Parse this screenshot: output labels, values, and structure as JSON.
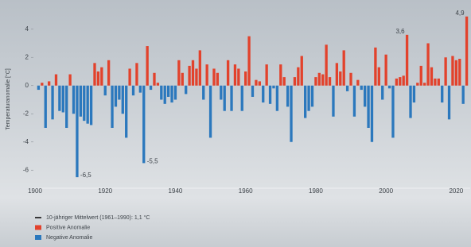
{
  "chart_data": {
    "type": "bar",
    "y_label": "Temperaturanomalie [°C]",
    "x": [
      1901,
      1902,
      1903,
      1904,
      1905,
      1906,
      1907,
      1908,
      1909,
      1910,
      1911,
      1912,
      1913,
      1914,
      1915,
      1916,
      1917,
      1918,
      1919,
      1920,
      1921,
      1922,
      1923,
      1924,
      1925,
      1926,
      1927,
      1928,
      1929,
      1930,
      1931,
      1932,
      1933,
      1934,
      1935,
      1936,
      1937,
      1938,
      1939,
      1940,
      1941,
      1942,
      1943,
      1944,
      1945,
      1946,
      1947,
      1948,
      1949,
      1950,
      1951,
      1952,
      1953,
      1954,
      1955,
      1956,
      1957,
      1958,
      1959,
      1960,
      1961,
      1962,
      1963,
      1964,
      1965,
      1966,
      1967,
      1968,
      1969,
      1970,
      1971,
      1972,
      1973,
      1974,
      1975,
      1976,
      1977,
      1978,
      1979,
      1980,
      1981,
      1982,
      1983,
      1984,
      1985,
      1986,
      1987,
      1988,
      1989,
      1990,
      1991,
      1992,
      1993,
      1994,
      1995,
      1996,
      1997,
      1998,
      1999,
      2000,
      2001,
      2002,
      2003,
      2004,
      2005,
      2006,
      2007,
      2008,
      2009,
      2010,
      2011,
      2012,
      2013,
      2014,
      2015,
      2016,
      2017,
      2018,
      2019,
      2020,
      2021,
      2022,
      2023
    ],
    "values": [
      -0.3,
      0.2,
      -3.0,
      0.3,
      -2.4,
      0.8,
      -1.8,
      -1.9,
      -3.0,
      0.8,
      -2.0,
      -6.5,
      -2.2,
      -2.5,
      -2.7,
      -2.8,
      1.6,
      1.0,
      1.3,
      -0.7,
      1.8,
      -3.0,
      -1.5,
      -1.0,
      -2.0,
      -3.7,
      1.2,
      -0.7,
      1.6,
      -0.5,
      -5.5,
      2.8,
      -0.3,
      0.9,
      0.2,
      -1.0,
      -1.3,
      -0.8,
      -1.2,
      -1.0,
      1.8,
      0.9,
      -0.6,
      1.4,
      1.8,
      1.2,
      2.5,
      -1.0,
      1.5,
      -3.7,
      1.2,
      0.9,
      -1.0,
      -1.8,
      1.8,
      -1.8,
      1.5,
      1.2,
      -1.8,
      1.0,
      3.5,
      -0.8,
      0.4,
      0.3,
      -1.2,
      1.5,
      -1.3,
      -0.2,
      -1.8,
      1.5,
      0.6,
      -1.5,
      -4.0,
      0.6,
      1.3,
      2.1,
      -2.3,
      -1.8,
      -1.5,
      0.6,
      0.9,
      0.8,
      2.9,
      0.6,
      -2.2,
      1.6,
      1.0,
      2.5,
      -0.4,
      0.9,
      -2.2,
      0.4,
      -0.3,
      -1.5,
      -3.0,
      -4.0,
      2.7,
      1.3,
      -1.0,
      2.2,
      -0.2,
      -3.7,
      0.5,
      0.6,
      0.7,
      3.6,
      -2.3,
      -1.2,
      0.2,
      1.4,
      0.2,
      3.0,
      1.3,
      0.5,
      0.5,
      -1.2,
      2.0,
      -2.4,
      2.1,
      1.8,
      1.9,
      -1.3,
      4.9
    ],
    "value_labels": [
      null,
      null,
      null,
      null,
      null,
      null,
      null,
      null,
      null,
      null,
      null,
      "-6,5",
      null,
      null,
      null,
      null,
      null,
      null,
      null,
      null,
      null,
      null,
      null,
      null,
      null,
      null,
      null,
      null,
      null,
      null,
      "-5,5",
      null,
      null,
      null,
      null,
      null,
      null,
      null,
      null,
      null,
      null,
      null,
      null,
      null,
      null,
      null,
      null,
      null,
      null,
      null,
      null,
      null,
      null,
      null,
      null,
      null,
      null,
      null,
      null,
      null,
      null,
      null,
      null,
      null,
      null,
      null,
      null,
      null,
      null,
      null,
      null,
      null,
      null,
      null,
      null,
      null,
      null,
      null,
      null,
      null,
      null,
      null,
      null,
      null,
      null,
      null,
      null,
      null,
      null,
      null,
      null,
      null,
      null,
      null,
      null,
      null,
      null,
      null,
      null,
      null,
      null,
      null,
      null,
      null,
      null,
      "3,6",
      null,
      null,
      null,
      null,
      null,
      null,
      null,
      null,
      null,
      null,
      null,
      null,
      null,
      null,
      null,
      null,
      "4,9"
    ],
    "xlim": [
      1900,
      2024
    ],
    "xticks": [
      1900,
      1920,
      1940,
      1960,
      1980,
      2000,
      2020
    ],
    "ylim": [
      -7,
      5
    ],
    "yticks": [
      4,
      2,
      0,
      -2,
      -4,
      -6
    ],
    "legend": [
      {
        "label": "10-jähriger Mittelwert (1961–1990): 1,1 °C",
        "color": "#111111"
      },
      {
        "label": "Positive Anomalie",
        "color": "#e2422c"
      },
      {
        "label": "Negative Anomalie",
        "color": "#2b78bd"
      }
    ]
  }
}
